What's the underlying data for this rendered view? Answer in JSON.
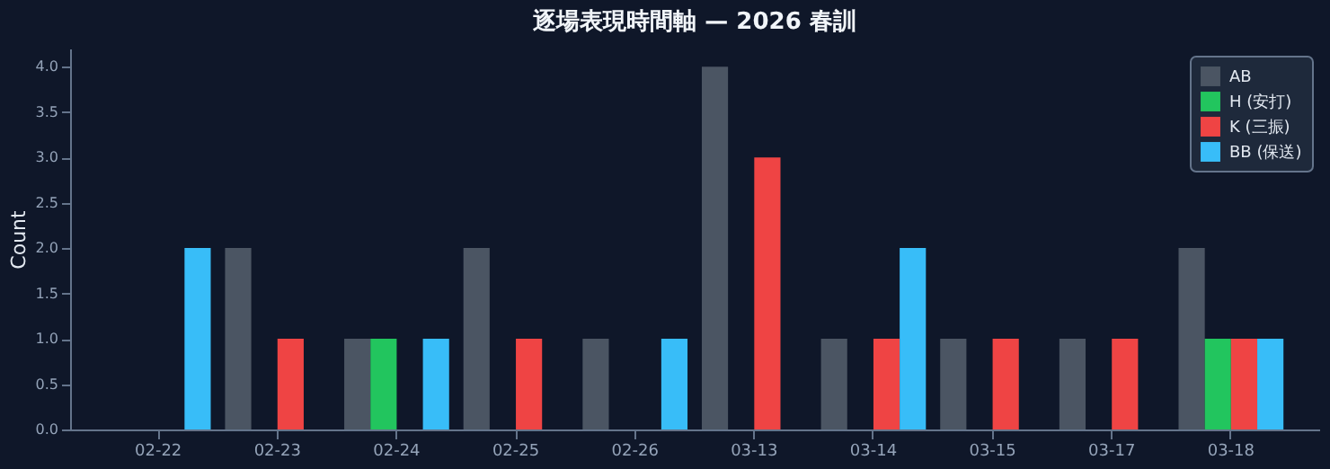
{
  "chart_data": {
    "type": "bar",
    "title": "逐場表現時間軸 — 2026 春訓",
    "ylabel": "Count",
    "categories": [
      "02-22",
      "02-23",
      "02-24",
      "02-25",
      "02-26",
      "03-13",
      "03-14",
      "03-15",
      "03-17",
      "03-18"
    ],
    "series": [
      {
        "name": "AB",
        "color": "#4b5563",
        "values": [
          0,
          2,
          1,
          2,
          1,
          4,
          1,
          1,
          1,
          2
        ]
      },
      {
        "name": "H (安打)",
        "color": "#22c55e",
        "values": [
          0,
          0,
          1,
          0,
          0,
          0,
          0,
          0,
          0,
          1
        ]
      },
      {
        "name": "K (三振)",
        "color": "#ef4444",
        "values": [
          0,
          1,
          0,
          1,
          0,
          3,
          1,
          1,
          1,
          1
        ]
      },
      {
        "name": "BB (保送)",
        "color": "#38bdf8",
        "values": [
          2,
          0,
          1,
          0,
          1,
          0,
          2,
          0,
          0,
          1
        ]
      }
    ],
    "ylim": [
      0,
      4.2
    ],
    "yticks": [
      {
        "value": 0,
        "label": "0.0"
      },
      {
        "value": 0.5,
        "label": "0.5"
      },
      {
        "value": 1,
        "label": "1.0"
      },
      {
        "value": 1.5,
        "label": "1.5"
      },
      {
        "value": 2,
        "label": "2.0"
      },
      {
        "value": 2.5,
        "label": "2.5"
      },
      {
        "value": 3,
        "label": "3.0"
      },
      {
        "value": 3.5,
        "label": "3.5"
      },
      {
        "value": 4,
        "label": "4.0"
      }
    ],
    "grid": false,
    "legend": "top right"
  }
}
